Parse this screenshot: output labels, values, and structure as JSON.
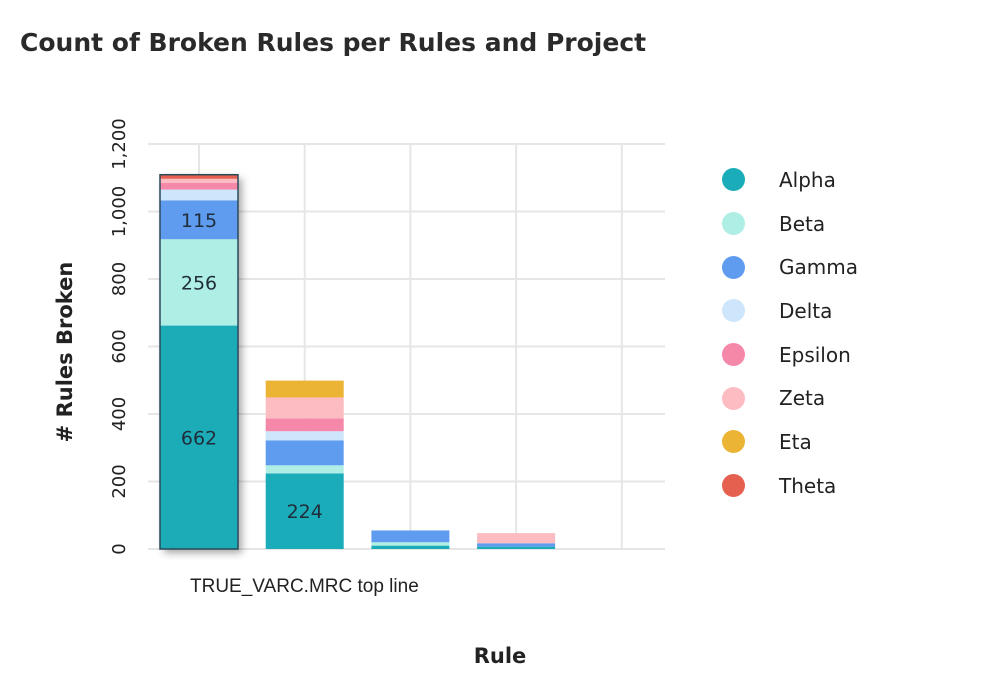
{
  "chart_data": {
    "type": "bar",
    "stacked": true,
    "title": "Count of Broken Rules per Rules and Project",
    "xlabel": "Rule",
    "ylabel": "# Rules Broken",
    "ylim": [
      0,
      1200
    ],
    "yticks": [
      0,
      200,
      400,
      600,
      800,
      1000,
      1200
    ],
    "ytick_labels": [
      "0",
      "200",
      "400",
      "600",
      "800",
      "1,000",
      "1,200"
    ],
    "grid": true,
    "legend_position": "right",
    "categories": [
      "TRUE_VARC.MRC top line",
      "",
      "",
      ""
    ],
    "series": [
      {
        "name": "Alpha",
        "color": "#1aacb8",
        "values": [
          662,
          224,
          10,
          7
        ]
      },
      {
        "name": "Beta",
        "color": "#aeeee5",
        "values": [
          256,
          24,
          10,
          0
        ]
      },
      {
        "name": "Gamma",
        "color": "#5f9cf0",
        "values": [
          115,
          74,
          35,
          10
        ]
      },
      {
        "name": "Delta",
        "color": "#cde6fb",
        "values": [
          32,
          27,
          0,
          0
        ]
      },
      {
        "name": "Epsilon",
        "color": "#f587a8",
        "values": [
          20,
          38,
          0,
          0
        ]
      },
      {
        "name": "Zeta",
        "color": "#fdbcc2",
        "values": [
          12,
          62,
          0,
          30
        ]
      },
      {
        "name": "Eta",
        "color": "#ecb435",
        "values": [
          0,
          50,
          0,
          0
        ]
      },
      {
        "name": "Theta",
        "color": "#e6604f",
        "values": [
          12,
          0,
          0,
          0
        ]
      }
    ],
    "data_labels": [
      {
        "category": 0,
        "series": "Alpha",
        "text": "662"
      },
      {
        "category": 0,
        "series": "Beta",
        "text": "256"
      },
      {
        "category": 0,
        "series": "Gamma",
        "text": "115"
      },
      {
        "category": 1,
        "series": "Alpha",
        "text": "224"
      }
    ],
    "highlighted_category": 0
  }
}
